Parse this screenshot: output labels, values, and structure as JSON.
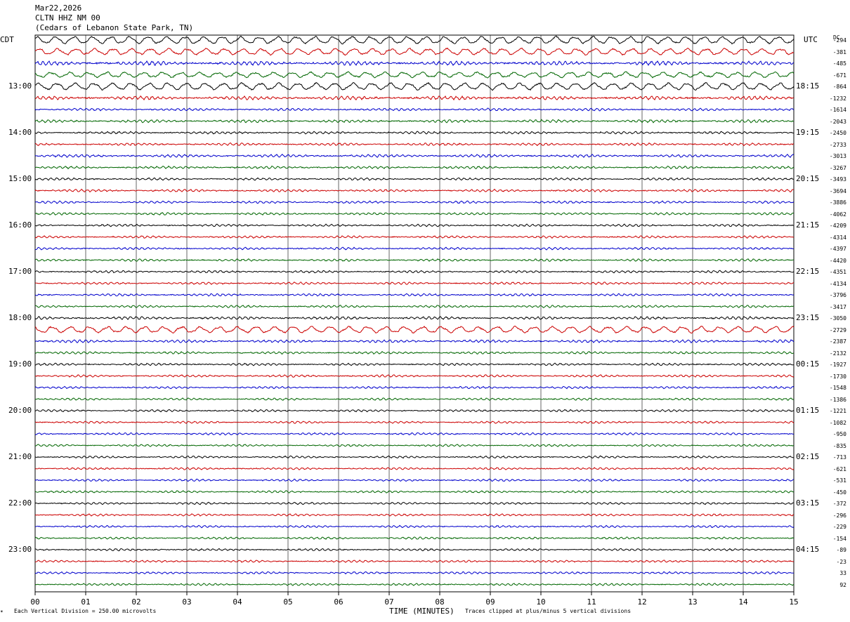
{
  "header": {
    "date": "Mar22,2026",
    "station": "CLTN HHZ NM 00",
    "location": "(Cedars of Lebanon State Park, TN)"
  },
  "corner": {
    "left_tz": "CDT",
    "right_tz": "UTC",
    "dc_label": "DC"
  },
  "footer": {
    "scale_note": "Each Vertical Division = 250.00 microvolts",
    "clip_note": "Traces clipped at plus/minus 5 vertical divisions",
    "mark": "✴"
  },
  "colors": [
    "#000000",
    "#cc0000",
    "#0000cc",
    "#006600"
  ],
  "chart_data": {
    "type": "line",
    "subtype": "helicorder",
    "xlabel": "TIME (MINUTES)",
    "x_ticks": [
      "00",
      "01",
      "02",
      "03",
      "04",
      "05",
      "06",
      "07",
      "08",
      "09",
      "10",
      "11",
      "12",
      "13",
      "14",
      "15"
    ],
    "xlim": [
      0,
      15
    ],
    "grid": "vertical lines every minute",
    "traces_per_hour": 4,
    "left_time_labels": [
      "13:00",
      "14:00",
      "15:00",
      "16:00",
      "17:00",
      "18:00",
      "19:00",
      "20:00",
      "21:00",
      "22:00",
      "23:00"
    ],
    "right_time_labels": [
      "18:15",
      "19:15",
      "20:15",
      "21:15",
      "22:15",
      "23:15",
      "00:15",
      "01:15",
      "02:15",
      "03:15",
      "04:15"
    ],
    "dc_offsets": [
      "-294",
      "-381",
      "-485",
      "-671",
      "-864",
      "-1232",
      "-1614",
      "-2043",
      "-2450",
      "-2733",
      "-3013",
      "-3267",
      "-3493",
      "-3694",
      "-3886",
      "-4062",
      "-4209",
      "-4314",
      "-4397",
      "-4420",
      "-4351",
      "-4134",
      "-3796",
      "-3417",
      "-3050",
      "-2729",
      "-2387",
      "-2132",
      "-1927",
      "-1730",
      "-1548",
      "-1386",
      "-1221",
      "-1082",
      "-950",
      "-835",
      "-713",
      "-621",
      "-531",
      "-450",
      "-372",
      "-296",
      "-229",
      "-154",
      "-89",
      "-23",
      "33",
      "92"
    ],
    "trace_amplitude": [
      4.2,
      3.6,
      2.2,
      3.0,
      4.0,
      2.0,
      1.4,
      1.6,
      1.4,
      1.4,
      1.6,
      1.4,
      1.3,
      1.4,
      1.3,
      1.3,
      1.3,
      1.3,
      1.3,
      1.3,
      1.3,
      1.3,
      1.3,
      1.3,
      1.6,
      3.6,
      1.6,
      1.3,
      1.3,
      1.3,
      1.2,
      1.2,
      1.2,
      1.2,
      1.2,
      1.2,
      1.2,
      1.2,
      1.2,
      1.2,
      1.2,
      1.2,
      1.2,
      1.2,
      1.2,
      1.2,
      1.2,
      1.2
    ]
  }
}
